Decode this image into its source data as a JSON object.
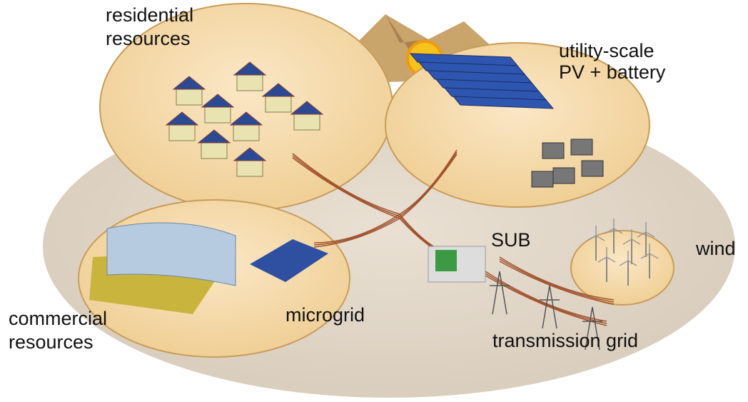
{
  "labels": {
    "residential": [
      "residential",
      "resources"
    ],
    "utility": [
      "utility-scale",
      "PV + battery"
    ],
    "substation": [
      "SUB"
    ],
    "wind": [
      "wind"
    ],
    "commercial": [
      "commercial",
      "resources"
    ],
    "microgrid": [
      "microgrid"
    ],
    "transmission": [
      "transmission grid"
    ]
  }
}
